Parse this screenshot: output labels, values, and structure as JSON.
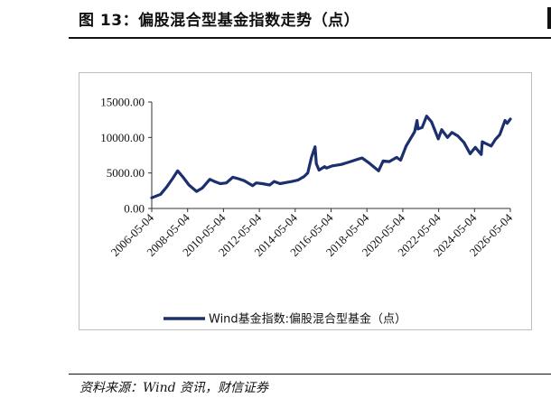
{
  "figure": {
    "title": "图 13：偏股混合型基金指数走势（点）",
    "source": "资料来源：Wind 资讯，财信证券"
  },
  "colors": {
    "line": "#1c2f6e",
    "axis": "#333333",
    "frame": "#bdbdbd"
  },
  "chart_data": {
    "type": "line",
    "title": "",
    "xlabel": "",
    "ylabel": "",
    "ylim": [
      0,
      15000
    ],
    "yticks": [
      "0.00",
      "5000.00",
      "10000.00",
      "15000.00"
    ],
    "xticks": [
      "2006-05-04",
      "2008-05-04",
      "2010-05-04",
      "2012-05-04",
      "2014-05-04",
      "2016-05-04",
      "2018-05-04",
      "2020-05-04",
      "2022-05-04",
      "2024-05-04",
      "2026-05-04"
    ],
    "xrange": [
      "2006-05-04",
      "2026-05-04"
    ],
    "grid": false,
    "legend_position": "bottom",
    "series": [
      {
        "name": "Wind基金指数:偏股混合型基金（点）",
        "x": [
          "2006-05-04",
          "2006-11-01",
          "2007-03-01",
          "2007-07-01",
          "2007-10-15",
          "2008-02-01",
          "2008-06-01",
          "2008-11-01",
          "2009-03-01",
          "2009-07-31",
          "2009-11-01",
          "2010-03-01",
          "2010-07-01",
          "2010-11-10",
          "2011-03-01",
          "2011-07-01",
          "2011-12-20",
          "2012-03-01",
          "2012-07-01",
          "2012-12-01",
          "2013-03-01",
          "2013-07-01",
          "2013-12-01",
          "2014-03-01",
          "2014-07-01",
          "2014-11-01",
          "2015-01-15",
          "2015-04-01",
          "2015-06-12",
          "2015-07-08",
          "2015-09-01",
          "2015-12-25",
          "2016-01-28",
          "2016-06-01",
          "2016-12-01",
          "2017-06-01",
          "2017-12-01",
          "2018-01-26",
          "2018-06-01",
          "2018-12-28",
          "2019-04-01",
          "2019-08-01",
          "2019-12-31",
          "2020-03-20",
          "2020-07-10",
          "2020-12-31",
          "2021-02-18",
          "2021-03-10",
          "2021-06-01",
          "2021-09-01",
          "2021-12-10",
          "2022-04-27",
          "2022-07-05",
          "2022-10-31",
          "2023-01-30",
          "2023-06-01",
          "2023-10-01",
          "2024-02-05",
          "2024-05-20",
          "2024-09-18",
          "2024-10-08",
          "2024-12-01",
          "2025-04-08",
          "2025-07-01",
          "2025-10-01",
          "2026-01-15",
          "2026-03-01",
          "2026-05-04"
        ],
        "values": [
          1500,
          2000,
          3000,
          4200,
          5300,
          4400,
          3300,
          2400,
          2900,
          4100,
          3800,
          3500,
          3600,
          4400,
          4200,
          3900,
          3200,
          3600,
          3500,
          3300,
          3800,
          3500,
          3700,
          3800,
          4000,
          4500,
          5000,
          7200,
          8700,
          6300,
          5400,
          5900,
          5700,
          6000,
          6200,
          6600,
          7000,
          7100,
          6500,
          5300,
          6700,
          6600,
          7200,
          6800,
          8800,
          10800,
          12400,
          11200,
          11400,
          13000,
          12200,
          9800,
          11100,
          10000,
          10700,
          10200,
          9300,
          7700,
          8600,
          7600,
          9400,
          9200,
          8800,
          9700,
          10400,
          12400,
          12000,
          12600
        ]
      }
    ]
  }
}
